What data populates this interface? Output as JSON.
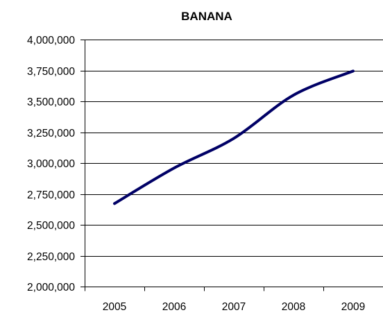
{
  "chart_data": {
    "type": "line",
    "title": "BANANA",
    "xlabel": "",
    "ylabel": "",
    "categories": [
      "2005",
      "2006",
      "2007",
      "2008",
      "2009"
    ],
    "series": [
      {
        "values": [
          2672000,
          2960000,
          3200000,
          3550000,
          3745000
        ],
        "color": "#000066"
      }
    ],
    "ylim": [
      2000000,
      4000000
    ],
    "yticks": [
      2000000,
      2250000,
      2500000,
      2750000,
      3000000,
      3250000,
      3500000,
      3750000,
      4000000
    ],
    "ytick_labels": [
      "2,000,000",
      "2,250,000",
      "2,500,000",
      "2,750,000",
      "3,000,000",
      "3,250,000",
      "3,500,000",
      "3,750,000",
      "4,000,000"
    ],
    "grid": true,
    "legend": "none",
    "line_style": "smooth"
  }
}
